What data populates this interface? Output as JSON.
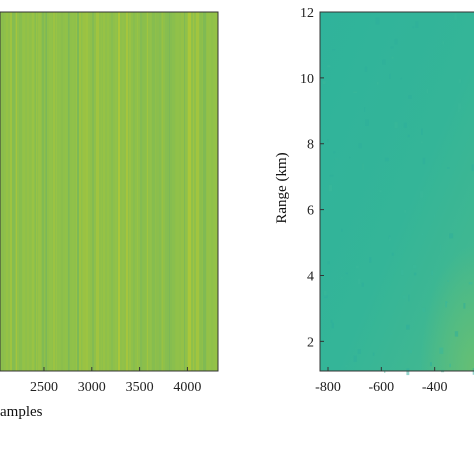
{
  "chart_data": [
    {
      "type": "heatmap",
      "title": "",
      "xlabel": "amples",
      "ylabel": "",
      "x_ticks": [
        "2500",
        "3000",
        "3500",
        "4000"
      ],
      "x_tick_values": [
        2500,
        3000,
        3500,
        4000
      ],
      "xlim": [
        2040,
        4320
      ],
      "colormap": "parula",
      "dominant_color": "#8fc04a",
      "pattern": "vertical stripes"
    },
    {
      "type": "heatmap",
      "title": "",
      "xlabel": "",
      "ylabel": "Range (km)",
      "x_ticks": [
        "-800",
        "-600",
        "-400"
      ],
      "x_tick_values": [
        -800,
        -600,
        -400
      ],
      "xlim": [
        -830,
        -230
      ],
      "y_ticks": [
        "2",
        "4",
        "6",
        "8",
        "10",
        "12"
      ],
      "y_tick_values": [
        2,
        4,
        6,
        8,
        10,
        12
      ],
      "ylim": [
        1.1,
        12
      ],
      "colormap": "parula",
      "dominant_color": "#33b39a",
      "pattern": "near-uniform field"
    }
  ]
}
